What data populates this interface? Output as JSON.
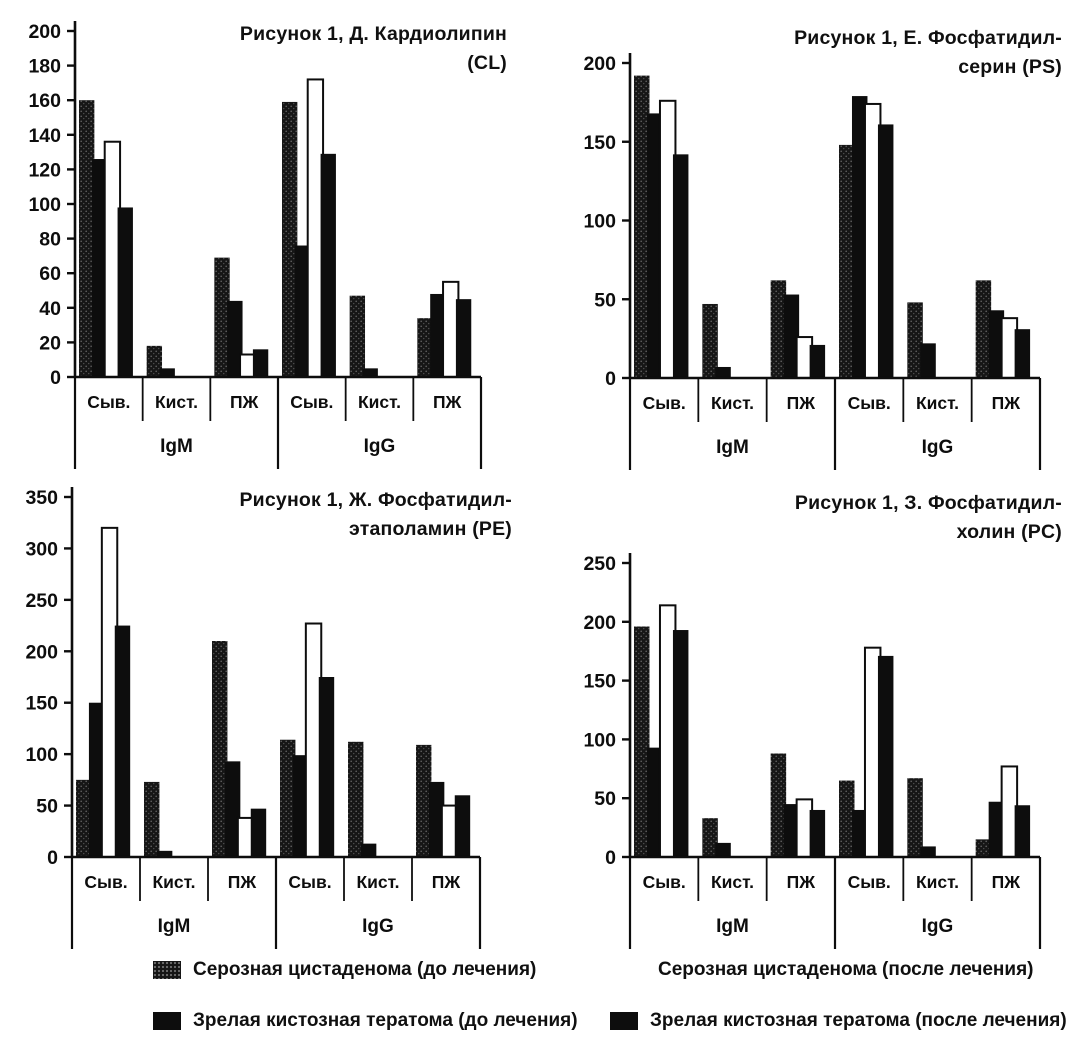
{
  "figure": {
    "background_color": "#ffffff",
    "ink_color": "#0d0d0d"
  },
  "axis": {
    "group_labels": [
      "Сыв.",
      "Кист.",
      "ПЖ",
      "Сыв.",
      "Кист.",
      "ПЖ"
    ],
    "section_labels": [
      "IgM",
      "IgG"
    ]
  },
  "legend": {
    "items": [
      {
        "label": "Серозная цистаденома (до лечения)",
        "swatch": "stipple"
      },
      {
        "label": "Зрелая кистозная тератома (до лечения)",
        "swatch": "black"
      },
      {
        "label": "Серозная цистаденома (после лечения)",
        "swatch": "white"
      },
      {
        "label": "Зрелая кистозная тератома (после лечения)",
        "swatch": "black"
      }
    ]
  },
  "chart_data": [
    {
      "type": "bar",
      "title": "Рисунок 1, Д. Кардиолипин (CL)",
      "title_lines": [
        "Рисунок 1, Д. Кардиолипин (CL)"
      ],
      "ylim": [
        0,
        200
      ],
      "tick_step": 20,
      "grid": false,
      "categories": [
        "IgM Сыв.",
        "IgM Кист.",
        "IgM ПЖ",
        "IgG Сыв.",
        "IgG Кист.",
        "IgG ПЖ"
      ],
      "series": [
        {
          "name": "Серозная цистаденома (до лечения)",
          "fill": "stipple",
          "values": [
            160,
            18,
            69,
            159,
            47,
            34
          ]
        },
        {
          "name": "Зрелая кистозная тератома (до лечения)",
          "fill": "black",
          "values": [
            126,
            5,
            44,
            76,
            5,
            48
          ]
        },
        {
          "name": "Серозная цистаденома (после лечения)",
          "fill": "white",
          "values": [
            136,
            null,
            13,
            172,
            null,
            55
          ]
        },
        {
          "name": "Зрелая кистозная тератома (после лечения)",
          "fill": "black",
          "values": [
            98,
            null,
            16,
            129,
            null,
            45
          ]
        }
      ]
    },
    {
      "type": "bar",
      "title": "Рисунок 1, Е. Фосфатидил-серин (PS)",
      "title_lines": [
        "Рисунок 1, Е. Фосфатидил-",
        "серин (PS)"
      ],
      "ylim": [
        0,
        200
      ],
      "tick_step": 50,
      "grid": false,
      "categories": [
        "IgM Сыв.",
        "IgM Кист.",
        "IgM ПЖ",
        "IgG Сыв.",
        "IgG Кист.",
        "IgG ПЖ"
      ],
      "series": [
        {
          "name": "Серозная цистаденома (до лечения)",
          "fill": "stipple",
          "values": [
            192,
            47,
            62,
            148,
            48,
            62
          ]
        },
        {
          "name": "Зрелая кистозная тератома (до лечения)",
          "fill": "black",
          "values": [
            168,
            7,
            53,
            179,
            22,
            43
          ]
        },
        {
          "name": "Серозная цистаденома (после лечения)",
          "fill": "white",
          "values": [
            176,
            null,
            26,
            174,
            null,
            38
          ]
        },
        {
          "name": "Зрелая кистозная тератома (после лечения)",
          "fill": "black",
          "values": [
            142,
            null,
            21,
            161,
            null,
            31
          ]
        }
      ]
    },
    {
      "type": "bar",
      "title": "Рисунок 1, Ж. Фосфатидил-этаполамин (PE)",
      "title_lines": [
        "Рисунок 1, Ж. Фосфатидил-",
        "этаполамин (PE)"
      ],
      "ylim": [
        0,
        350
      ],
      "tick_step": 50,
      "grid": false,
      "categories": [
        "IgM Сыв.",
        "IgM Кист.",
        "IgM ПЖ",
        "IgG Сыв.",
        "IgG Кист.",
        "IgG ПЖ"
      ],
      "series": [
        {
          "name": "Серозная цистаденома (до лечения)",
          "fill": "stipple",
          "values": [
            75,
            73,
            210,
            114,
            112,
            109
          ]
        },
        {
          "name": "Зрелая кистозная тератома (до лечения)",
          "fill": "black",
          "values": [
            150,
            6,
            93,
            99,
            13,
            73
          ]
        },
        {
          "name": "Серозная цистаденома (после лечения)",
          "fill": "white",
          "values": [
            320,
            null,
            38,
            227,
            null,
            50
          ]
        },
        {
          "name": "Зрелая кистозная тератома (после лечения)",
          "fill": "black",
          "values": [
            225,
            null,
            47,
            175,
            null,
            60
          ]
        }
      ]
    },
    {
      "type": "bar",
      "title": "Рисунок 1, З. Фосфатидил-холин (PC)",
      "title_lines": [
        "Рисунок 1, З. Фосфатидил-",
        "холин (PC)"
      ],
      "ylim": [
        0,
        250
      ],
      "tick_step": 50,
      "grid": false,
      "categories": [
        "IgM Сыв.",
        "IgM Кист.",
        "IgM ПЖ",
        "IgG Сыв.",
        "IgG Кист.",
        "IgG ПЖ"
      ],
      "series": [
        {
          "name": "Серозная цистаденома (до лечения)",
          "fill": "stipple",
          "values": [
            196,
            33,
            88,
            65,
            67,
            15
          ]
        },
        {
          "name": "Зрелая кистозная тератома (до лечения)",
          "fill": "black",
          "values": [
            93,
            12,
            45,
            40,
            9,
            47
          ]
        },
        {
          "name": "Серозная цистаденома (после лечения)",
          "fill": "white",
          "values": [
            214,
            null,
            49,
            178,
            null,
            77
          ]
        },
        {
          "name": "Зрелая кистозная тератома (после лечения)",
          "fill": "black",
          "values": [
            193,
            null,
            40,
            171,
            null,
            44
          ]
        }
      ]
    }
  ]
}
